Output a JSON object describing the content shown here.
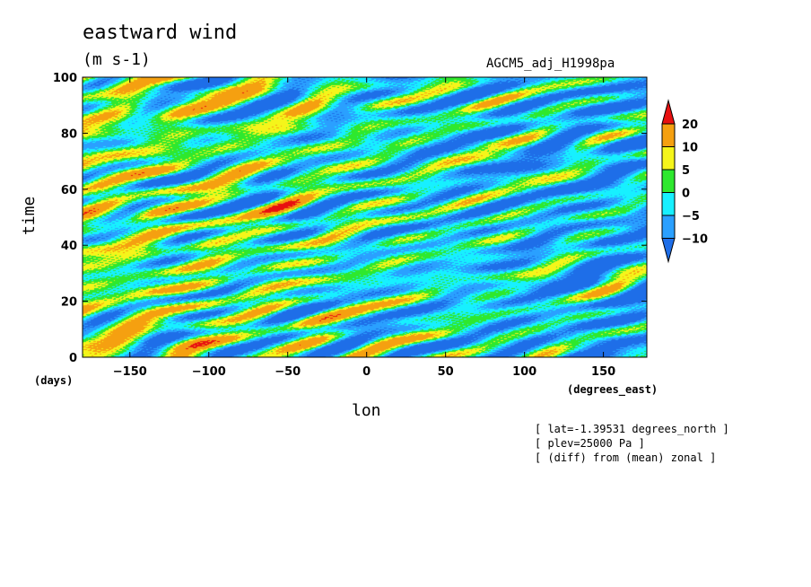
{
  "chart_data": {
    "type": "heatmap",
    "title": "eastward wind",
    "units": "(m s-1)",
    "run_label": "AGCM5_adj_H1998pa",
    "xlabel": "lon",
    "xunits": "(degrees_east)",
    "ylabel": "time",
    "yunits": "(days)",
    "xlim": [
      -180,
      177.5
    ],
    "ylim": [
      0,
      100
    ],
    "xticks": [
      -150,
      -100,
      -50,
      0,
      50,
      100,
      150
    ],
    "yticks": [
      0,
      20,
      40,
      60,
      80,
      100
    ],
    "contour_levels": [
      -10,
      -5,
      0,
      5,
      10,
      20
    ],
    "colorbar_labels": [
      "20",
      "10",
      "5",
      "0",
      "-5",
      "-10"
    ],
    "colors": {
      "below_-10": "#1e6ee8",
      "-10_to_-5": "#2aa0ff",
      "-5_to_0": "#17f0ff",
      "0_to_5": "#2ee82e",
      "5_to_10": "#f5f51a",
      "10_to_20": "#f5a010",
      "above_20": "#e81010"
    },
    "annotations": [
      "[ lat=-1.39531 degrees_north ]",
      "[ plev=25000 Pa ]",
      "[ (diff) from (mean) zonal ]"
    ]
  }
}
